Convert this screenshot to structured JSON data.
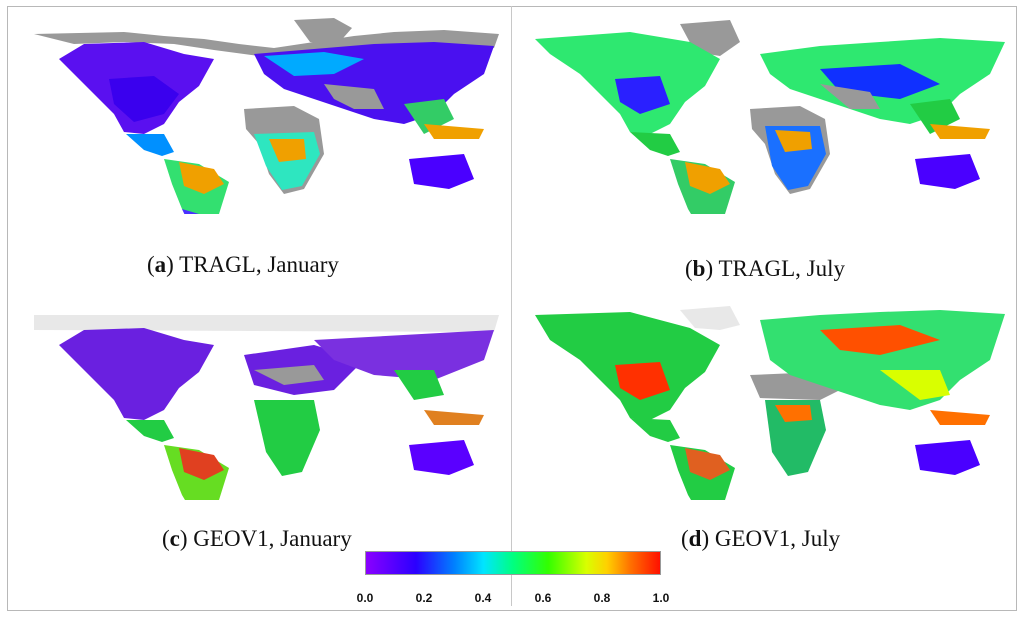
{
  "panels": [
    {
      "letter": "a",
      "text": ") TRAGL, January",
      "month": "January"
    },
    {
      "letter": "b",
      "text": ") TRAGL, July",
      "month": "July"
    },
    {
      "letter": "c",
      "text": ") GEOV1, January",
      "month": "January"
    },
    {
      "letter": "d",
      "text": ") GEOV1, July",
      "month": "July"
    }
  ],
  "colorbar": {
    "ticks": [
      "0.0",
      "0.2",
      "0.4",
      "0.6",
      "0.8",
      "1.0"
    ],
    "colors": [
      "#8a00ff",
      "#2b00ff",
      "#0080ff",
      "#00e5ff",
      "#00ff80",
      "#33ff00",
      "#d9ff00",
      "#ffd000",
      "#ff7000",
      "#ff1000"
    ]
  },
  "legend_colors": {
    "no_data_dark": "#999999",
    "no_data_light": "#e8e8e8"
  }
}
